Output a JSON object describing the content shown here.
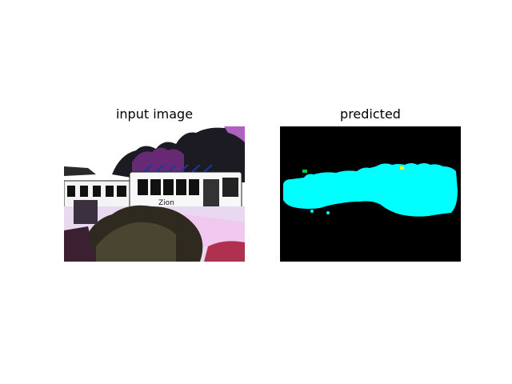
{
  "panels": {
    "left": {
      "title": "input image"
    },
    "right": {
      "title": "predicted"
    }
  },
  "colors": {
    "background": "#ffffff",
    "mask_background": "#000000",
    "mask_bus": "#00ffff",
    "mask_small_blob": "#00cc44",
    "mask_yellow_blob": "#ffff00"
  },
  "photo": {
    "bus_text": "Zion"
  }
}
